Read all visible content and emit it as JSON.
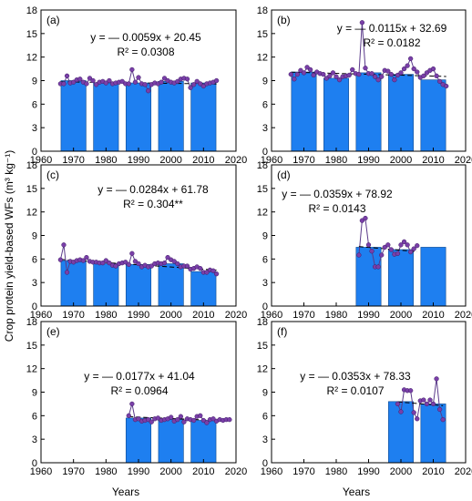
{
  "figure": {
    "ylabel": "Crop protein yield-based WFs (m³ kg⁻¹)",
    "xlabel": "Years"
  },
  "colors": {
    "bar": "#1e7ff0",
    "point": "#7a3fa8",
    "line": "#5a3a8a",
    "trend": "#000000"
  },
  "chart_data": [
    {
      "type": "bar",
      "panel": "(a)",
      "xlim": [
        1960,
        2020
      ],
      "ylim": [
        0,
        18
      ],
      "xticks": [
        1960,
        1970,
        1980,
        1990,
        2000,
        2010,
        2020
      ],
      "yticks": [
        0,
        3,
        6,
        9,
        12,
        15,
        18
      ],
      "bars": [
        {
          "x": 1970,
          "value": 9.0
        },
        {
          "x": 1980,
          "value": 8.7
        },
        {
          "x": 1990,
          "value": 8.7
        },
        {
          "x": 2000,
          "value": 8.9
        },
        {
          "x": 2010,
          "value": 8.7
        }
      ],
      "annual": {
        "start": 1966,
        "values": [
          8.6,
          8.6,
          9.6,
          8.7,
          8.8,
          9.1,
          9.2,
          8.8,
          8.6,
          9.3,
          9.0,
          8.5,
          8.8,
          8.9,
          8.7,
          9.0,
          8.6,
          8.7,
          8.8,
          8.9,
          8.6,
          8.6,
          10.4,
          8.8,
          9.4,
          8.6,
          8.5,
          7.7,
          8.5,
          8.7,
          8.6,
          8.8,
          9.3,
          9.0,
          8.8,
          8.7,
          8.9,
          9.2,
          9.3,
          9.2,
          8.1,
          8.5,
          8.9,
          8.6,
          8.3,
          8.6,
          8.7,
          8.8,
          9.0
        ]
      },
      "trend": {
        "slope": -0.0059,
        "intercept": 20.45
      },
      "equation": "y = — 0.0059x + 20.45",
      "r2": "R² = 0.0308"
    },
    {
      "type": "bar",
      "panel": "(b)",
      "xlim": [
        1960,
        2020
      ],
      "ylim": [
        0,
        18
      ],
      "xticks": [
        1960,
        1970,
        1980,
        1990,
        2000,
        2010,
        2020
      ],
      "yticks": [
        0,
        3,
        6,
        9,
        12,
        15,
        18
      ],
      "bars": [
        {
          "x": 1970,
          "value": 10.1
        },
        {
          "x": 1980,
          "value": 9.3
        },
        {
          "x": 1990,
          "value": 10.0
        },
        {
          "x": 2000,
          "value": 9.8
        },
        {
          "x": 2010,
          "value": 9.1
        }
      ],
      "annual": {
        "start": 1966,
        "values": [
          9.8,
          9.2,
          9.8,
          10.3,
          10.0,
          10.7,
          10.4,
          9.7,
          10.1,
          9.9,
          9.8,
          9.3,
          9.6,
          10.0,
          9.5,
          9.1,
          9.5,
          9.6,
          9.7,
          10.4,
          9.9,
          9.8,
          16.4,
          10.6,
          9.9,
          9.9,
          9.5,
          9.1,
          9.5,
          10.3,
          10.2,
          9.8,
          9.1,
          9.7,
          10.0,
          10.5,
          10.9,
          11.8,
          10.5,
          10.1,
          9.4,
          9.6,
          10.0,
          10.3,
          10.5,
          9.6,
          8.9,
          8.5,
          8.3
        ]
      },
      "trend": {
        "slope": -0.0115,
        "intercept": 32.69
      },
      "equation": "y = — 0.0115x + 32.69",
      "r2": "R² = 0.0182"
    },
    {
      "type": "bar",
      "panel": "(c)",
      "xlim": [
        1960,
        2020
      ],
      "ylim": [
        0,
        18
      ],
      "xticks": [
        1960,
        1970,
        1980,
        1990,
        2000,
        2010,
        2020
      ],
      "yticks": [
        0,
        3,
        6,
        9,
        12,
        15,
        18
      ],
      "bars": [
        {
          "x": 1970,
          "value": 5.8
        },
        {
          "x": 1980,
          "value": 5.4
        },
        {
          "x": 1990,
          "value": 5.3
        },
        {
          "x": 2000,
          "value": 5.4
        },
        {
          "x": 2010,
          "value": 4.4
        }
      ],
      "annual": {
        "start": 1966,
        "values": [
          5.9,
          7.8,
          4.3,
          5.7,
          5.6,
          5.8,
          5.9,
          5.8,
          6.2,
          5.7,
          5.6,
          5.6,
          5.5,
          5.5,
          5.8,
          5.5,
          5.2,
          5.1,
          5.4,
          5.5,
          5.6,
          5.3,
          6.7,
          5.7,
          5.4,
          5.0,
          5.2,
          5.0,
          5.1,
          5.4,
          5.5,
          5.4,
          5.5,
          6.2,
          5.9,
          5.7,
          5.4,
          5.0,
          5.1,
          5.1,
          4.7,
          4.8,
          5.0,
          4.8,
          4.3,
          4.3,
          4.6,
          4.5,
          4.1
        ]
      },
      "trend": {
        "slope": -0.0284,
        "intercept": 61.78
      },
      "equation": "y = — 0.0284x + 61.78",
      "r2": "R² = 0.304**"
    },
    {
      "type": "bar",
      "panel": "(d)",
      "xlim": [
        1960,
        2020
      ],
      "ylim": [
        0,
        18
      ],
      "xticks": [
        1960,
        1970,
        1980,
        1990,
        2000,
        2010,
        2020
      ],
      "yticks": [
        0,
        3,
        6,
        9,
        12,
        15,
        18
      ],
      "bars": [
        {
          "x": 1990,
          "value": 7.5
        },
        {
          "x": 2000,
          "value": 7.2
        },
        {
          "x": 2010,
          "value": 7.5
        }
      ],
      "annual": {
        "start": 1987,
        "values": [
          6.5,
          10.9,
          11.2,
          7.8,
          7.0,
          5.0,
          5.0,
          6.5,
          7.5,
          7.8,
          7.2,
          6.6,
          6.7,
          7.8,
          8.2,
          7.8,
          6.9,
          7.3,
          7.7
        ]
      },
      "trend": {
        "slope": -0.0359,
        "intercept": 78.92
      },
      "equation": "y = — 0.0359x + 78.92",
      "r2": "R² = 0.0143"
    },
    {
      "type": "bar",
      "panel": "(e)",
      "xlim": [
        1960,
        2020
      ],
      "ylim": [
        0,
        18
      ],
      "xticks": [
        1960,
        1970,
        1980,
        1990,
        2000,
        2010,
        2020
      ],
      "yticks": [
        0,
        3,
        6,
        9,
        12,
        15,
        18
      ],
      "bars": [
        {
          "x": 1990,
          "value": 5.7
        },
        {
          "x": 2000,
          "value": 5.5
        },
        {
          "x": 2010,
          "value": 5.4
        }
      ],
      "annual": {
        "start": 1987,
        "values": [
          6.0,
          7.5,
          5.5,
          5.6,
          5.3,
          5.4,
          5.5,
          5.2,
          5.6,
          5.7,
          5.4,
          5.5,
          5.6,
          5.8,
          5.3,
          5.5,
          5.9,
          5.2,
          5.6,
          5.5,
          5.4,
          5.9,
          6.0,
          5.4,
          5.1,
          5.5,
          5.6,
          5.3,
          5.5,
          5.4,
          5.5,
          5.5
        ]
      },
      "trend": {
        "slope": -0.0177,
        "intercept": 41.04
      },
      "equation": "y = — 0.0177x + 41.04",
      "r2": "R² = 0.0964"
    },
    {
      "type": "bar",
      "panel": "(f)",
      "xlim": [
        1960,
        2020
      ],
      "ylim": [
        0,
        18
      ],
      "xticks": [
        1960,
        1970,
        1980,
        1990,
        2000,
        2010,
        2020
      ],
      "yticks": [
        0,
        3,
        6,
        9,
        12,
        15,
        18
      ],
      "bars": [
        {
          "x": 2000,
          "value": 7.8
        },
        {
          "x": 2010,
          "value": 7.5
        }
      ],
      "annual": {
        "start": 1999,
        "values": [
          7.5,
          6.5,
          9.3,
          9.2,
          9.2,
          6.4,
          5.6,
          7.9,
          8.0,
          7.5,
          8.0,
          7.5,
          10.7,
          6.8,
          5.5
        ]
      },
      "trend": {
        "slope": -0.0353,
        "intercept": 78.33
      },
      "equation": "y = — 0.0353x + 78.33",
      "r2": "R² = 0.0107"
    }
  ]
}
